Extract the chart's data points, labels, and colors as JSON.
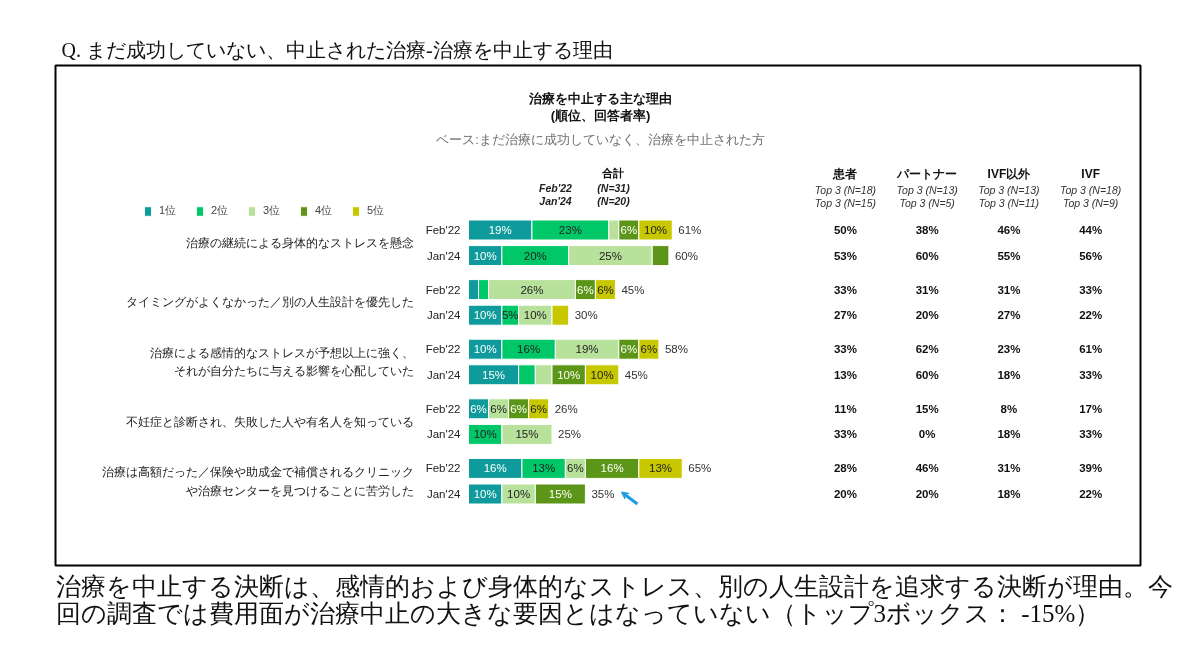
{
  "chart_data": [
    {
      "type": "bar",
      "orientation": "horizontal",
      "stacked": true,
      "title": "治療を中止する主な理由\n(順位、回答者率)",
      "subtitle": "ベース:まだ治療に成功していなく、治療を中止された方",
      "categories": [
        "Feb'22",
        "Jan'24",
        "Feb'22",
        "Jan'24",
        "Feb'22",
        "Jan'24",
        "Feb'22",
        "Jan'24",
        "Feb'22",
        "Jan'24"
      ],
      "series": [
        {
          "name": "1位",
          "color": "#0f9b9b",
          "values": [
            19,
            10,
            3,
            10,
            10,
            15,
            6,
            null,
            16,
            10
          ],
          "value_labels": [
            "19%",
            "10%",
            null,
            "10%",
            "10%",
            "15%",
            "6%",
            null,
            "16%",
            "10%"
          ]
        },
        {
          "name": "2位",
          "color": "#00c868",
          "values": [
            23,
            20,
            3,
            5,
            16,
            5,
            null,
            10,
            13,
            null
          ],
          "value_labels": [
            "23%",
            "20%",
            null,
            "5%",
            "16%",
            null,
            null,
            "10%",
            "13%",
            null
          ]
        },
        {
          "name": "3位",
          "color": "#b8e19c",
          "values": [
            3,
            25,
            26,
            10,
            19,
            5,
            6,
            15,
            6,
            10
          ],
          "value_labels": [
            null,
            "25%",
            "26%",
            "10%",
            "19%",
            null,
            "6%",
            "15%",
            "6%",
            "10%"
          ]
        },
        {
          "name": "4位",
          "color": "#5c9618",
          "values": [
            6,
            5,
            6,
            null,
            6,
            10,
            6,
            null,
            16,
            15
          ],
          "value_labels": [
            "6%",
            null,
            "6%",
            null,
            "6%",
            "10%",
            "6%",
            null,
            "16%",
            "15%"
          ]
        },
        {
          "name": "5位",
          "color": "#c8c800",
          "values": [
            10,
            null,
            6,
            5,
            6,
            10,
            6,
            null,
            13,
            null
          ],
          "value_labels": [
            "10%",
            null,
            "6%",
            null,
            "6%",
            "10%",
            "6%",
            null,
            "13%",
            null
          ]
        }
      ],
      "totals": [
        "61%",
        "60%",
        "45%",
        "30%",
        "58%",
        "45%",
        "26%",
        "25%",
        "65%",
        "35%"
      ],
      "legend": "top left",
      "tick_labels": "y",
      "annotations": [
        "Q. まだ成功していない、中止された治療-治療を中止する理由",
        "合計",
        "Feb'22 (N=31)",
        "Jan'24 (N=20)",
        "治療の継続による身体的なストレスを懸念",
        "タイミングがよくなかった／別の人生設計を優先した",
        "治療による感情的なストレスが予想以上に強く、それが自分たちに与える影響を心配していた",
        "不妊症と診断され、失敗した人や有名人を知っている",
        "治療は高額だった／保険や助成金で補償されるクリニックや治療センターを見つけることに苦労した",
        "治療を中止する決断は、感情的および身体的なストレス、別の人生設計を追求する決断が理由。今回の調査では費用面が治療中止の大きな要因とはなっていない（トップ3ボックス： -15%）"
      ]
    },
    {
      "type": "other",
      "categories": [
        "患者\nTop 3 (N=18)\nTop 3 (N=15)",
        "パートナー\nTop 3 (N=13)\nTop 3 (N=5)",
        "IVF以外\nTop 3 (N=13)\nTop 3 (N=11)",
        "IVF\nTop 3 (N=18)\nTop 3 (N=9)"
      ],
      "annotations": [
        "50%",
        "38%",
        "46%",
        "44%",
        "53%",
        "60%",
        "55%",
        "56%",
        "33%",
        "31%",
        "31%",
        "33%",
        "27%",
        "20%",
        "27%",
        "22%",
        "33%",
        "62%",
        "23%",
        "61%",
        "13%",
        "60%",
        "18%",
        "33%",
        "11%",
        "15%",
        "8%",
        "17%",
        "33%",
        "0%",
        "18%",
        "33%",
        "28%",
        "46%",
        "31%",
        "39%",
        "20%",
        "20%",
        "18%",
        "22%"
      ]
    }
  ]
}
